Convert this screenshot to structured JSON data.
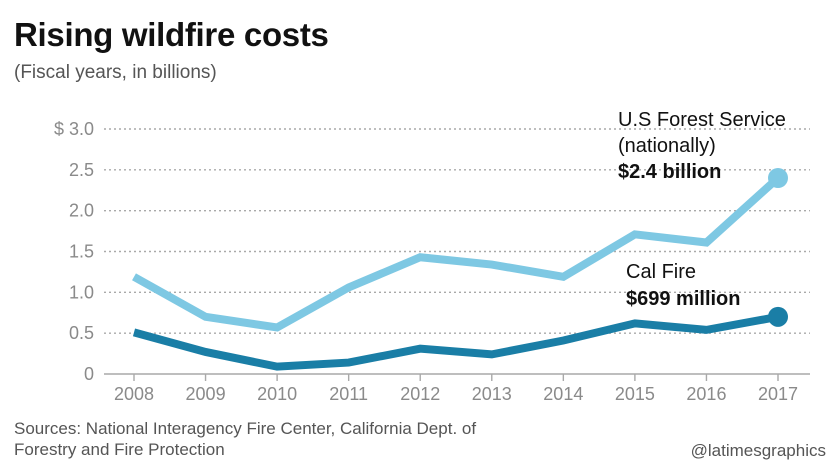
{
  "header": {
    "title": "Rising wildfire costs",
    "subtitle": "(Fiscal years, in billions)"
  },
  "chart_data": {
    "type": "line",
    "title": "Rising wildfire costs",
    "subtitle": "(Fiscal years, in billions)",
    "x": [
      2008,
      2009,
      2010,
      2011,
      2012,
      2013,
      2014,
      2015,
      2016,
      2017
    ],
    "x_tick_labels": [
      "2008",
      "2009",
      "2010",
      "2011",
      "2012",
      "2013",
      "2014",
      "2015",
      "2016",
      "2017"
    ],
    "y_ticks": [
      0,
      0.5,
      1.0,
      1.5,
      2.0,
      2.5,
      3.0
    ],
    "y_tick_labels": [
      "0",
      "0.5",
      "1.0",
      "1.5",
      "2.0",
      "2.5",
      "$ 3.0"
    ],
    "ylim": [
      0,
      3.0
    ],
    "grid": true,
    "legend": "none",
    "series": [
      {
        "name": "U.S Forest Service (nationally)",
        "label_lines": [
          "U.S Forest Service",
          "(nationally)"
        ],
        "end_label": "$2.4 billion",
        "color": "#7ec8e3",
        "values": [
          1.19,
          0.7,
          0.57,
          1.06,
          1.43,
          1.34,
          1.19,
          1.71,
          1.61,
          2.4
        ]
      },
      {
        "name": "Cal Fire",
        "label_lines": [
          "Cal Fire"
        ],
        "end_label": "$699 million",
        "color": "#1a7ea6",
        "values": [
          0.51,
          0.27,
          0.09,
          0.14,
          0.31,
          0.24,
          0.41,
          0.62,
          0.54,
          0.7
        ]
      }
    ]
  },
  "footer": {
    "source_line1": "Sources: National Interagency Fire Center, California Dept. of",
    "source_line2": "Forestry and Fire Protection",
    "credit": "@latimesgraphics"
  }
}
